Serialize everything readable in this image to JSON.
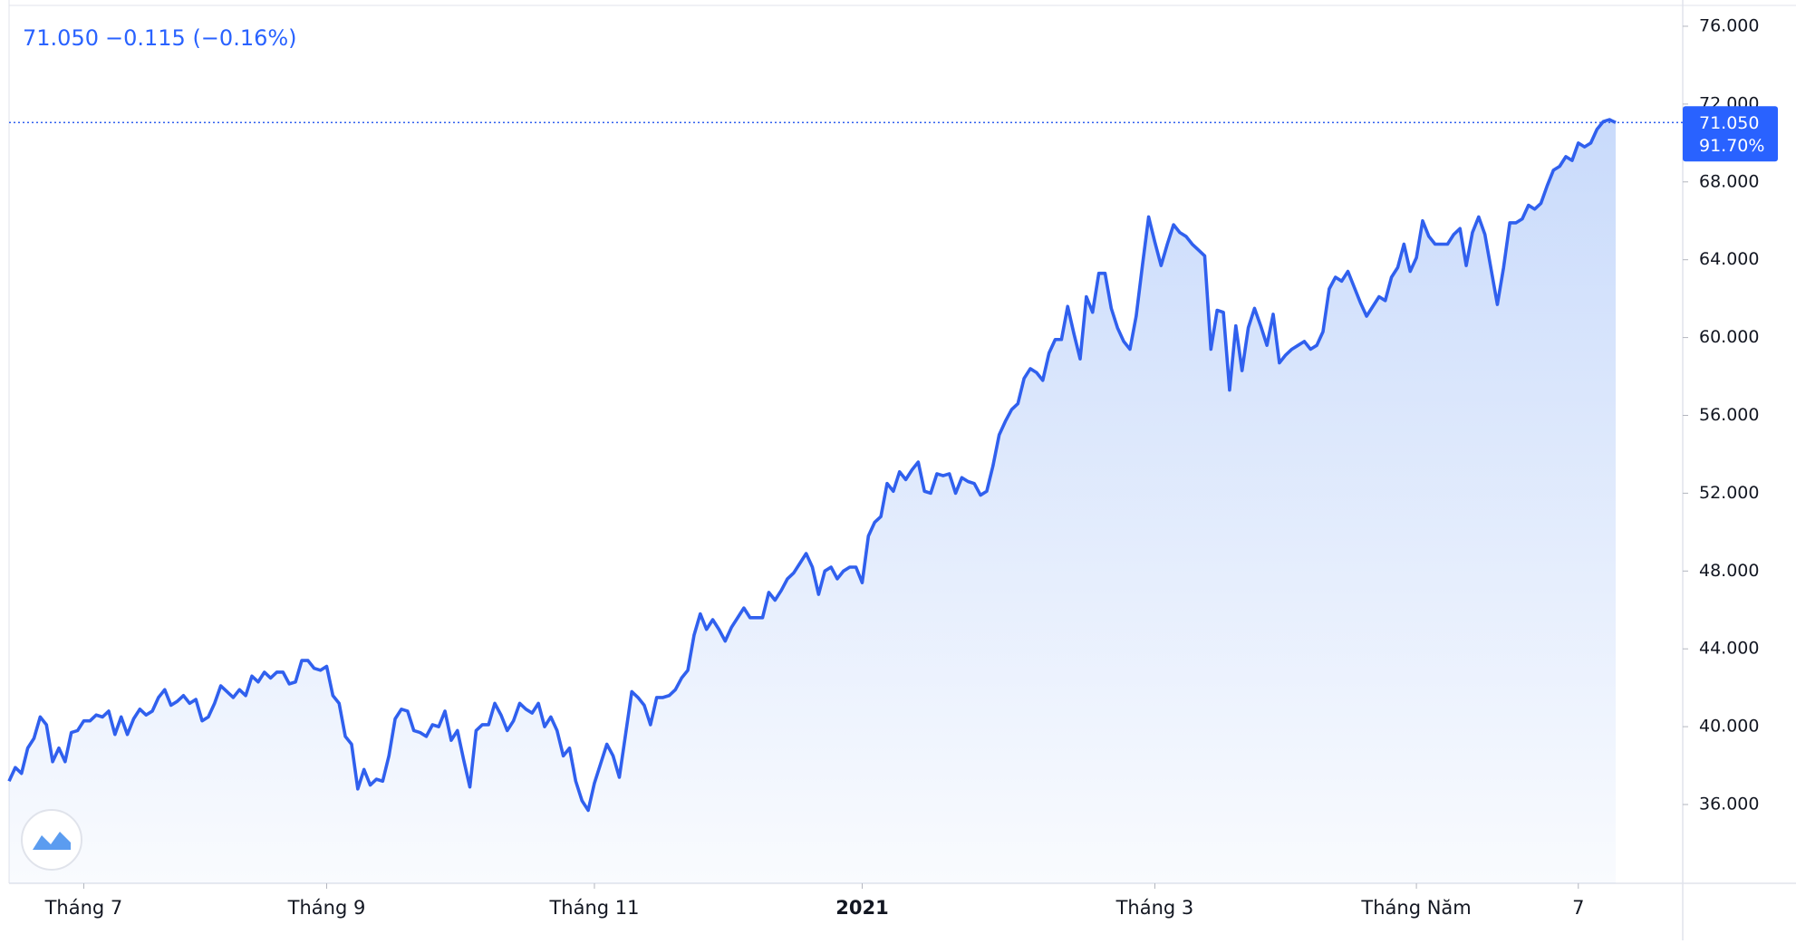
{
  "chart_data": {
    "type": "area",
    "header": {
      "price": "71.050",
      "change": "−0.115 (−0.16%)"
    },
    "badge": {
      "price": "71.050",
      "percent": "91.70%"
    },
    "color": "#3060ee",
    "values": [
      37.2,
      37.9,
      37.6,
      38.9,
      39.4,
      40.5,
      40.1,
      38.2,
      38.9,
      38.2,
      39.7,
      39.8,
      40.3,
      40.3,
      40.6,
      40.5,
      40.8,
      39.6,
      40.5,
      39.6,
      40.4,
      40.9,
      40.6,
      40.8,
      41.5,
      41.9,
      41.1,
      41.3,
      41.6,
      41.2,
      41.4,
      40.3,
      40.5,
      41.2,
      42.1,
      41.8,
      41.5,
      41.9,
      41.6,
      42.6,
      42.3,
      42.8,
      42.5,
      42.8,
      42.8,
      42.2,
      42.3,
      43.4,
      43.4,
      43.0,
      42.9,
      43.1,
      41.6,
      41.2,
      39.5,
      39.1,
      36.8,
      37.8,
      37.0,
      37.3,
      37.2,
      38.5,
      40.4,
      40.9,
      40.8,
      39.8,
      39.7,
      39.5,
      40.1,
      40.0,
      40.8,
      39.3,
      39.8,
      38.3,
      36.9,
      39.8,
      40.1,
      40.1,
      41.2,
      40.6,
      39.8,
      40.3,
      41.2,
      40.9,
      40.7,
      41.2,
      40.0,
      40.5,
      39.8,
      38.5,
      38.9,
      37.2,
      36.2,
      35.7,
      37.1,
      38.1,
      39.1,
      38.5,
      37.4,
      39.6,
      41.8,
      41.5,
      41.1,
      40.1,
      41.5,
      41.5,
      41.6,
      41.9,
      42.5,
      42.9,
      44.7,
      45.8,
      45.0,
      45.5,
      45.0,
      44.4,
      45.1,
      45.6,
      46.1,
      45.6,
      45.6,
      45.6,
      46.9,
      46.5,
      47.0,
      47.6,
      47.9,
      48.4,
      48.9,
      48.2,
      46.8,
      48.0,
      48.2,
      47.6,
      48.0,
      48.2,
      48.2,
      47.4,
      49.8,
      50.5,
      50.8,
      52.5,
      52.1,
      53.1,
      52.7,
      53.2,
      53.6,
      52.1,
      52.0,
      53.0,
      52.9,
      53.0,
      52.0,
      52.8,
      52.6,
      52.5,
      51.9,
      52.1,
      53.4,
      55.0,
      55.7,
      56.3,
      56.6,
      57.9,
      58.4,
      58.2,
      57.8,
      59.2,
      59.9,
      59.9,
      61.6,
      60.2,
      58.9,
      62.1,
      61.3,
      63.3,
      63.3,
      61.5,
      60.5,
      59.8,
      59.4,
      61.1,
      63.7,
      66.2,
      64.9,
      63.7,
      64.8,
      65.8,
      65.4,
      65.2,
      64.8,
      64.5,
      64.2,
      59.4,
      61.4,
      61.3,
      57.3,
      60.6,
      58.3,
      60.5,
      61.5,
      60.6,
      59.6,
      61.2,
      58.7,
      59.1,
      59.4,
      59.6,
      59.8,
      59.4,
      59.6,
      60.3,
      62.5,
      63.1,
      62.9,
      63.4,
      62.6,
      61.8,
      61.1,
      61.6,
      62.1,
      61.9,
      63.1,
      63.6,
      64.8,
      63.4,
      64.1,
      66.0,
      65.2,
      64.8,
      64.8,
      64.8,
      65.3,
      65.6,
      63.7,
      65.4,
      66.2,
      65.3,
      63.5,
      61.7,
      63.6,
      65.9,
      65.9,
      66.1,
      66.8,
      66.6,
      66.9,
      67.8,
      68.6,
      68.8,
      69.3,
      69.1,
      70.0,
      69.8,
      70.0,
      70.7,
      71.1,
      71.2,
      71.05
    ],
    "ylim": [
      31.95,
      77.07
    ],
    "yticks": [
      {
        "value": 36,
        "label": "36.000"
      },
      {
        "value": 40,
        "label": "40.000"
      },
      {
        "value": 44,
        "label": "44.000"
      },
      {
        "value": 48,
        "label": "48.000"
      },
      {
        "value": 52,
        "label": "52.000"
      },
      {
        "value": 56,
        "label": "56.000"
      },
      {
        "value": 60,
        "label": "60.000"
      },
      {
        "value": 64,
        "label": "64.000"
      },
      {
        "value": 68,
        "label": "68.000"
      },
      {
        "value": 72,
        "label": "72.000"
      },
      {
        "value": 76,
        "label": "76.000"
      }
    ],
    "xticks": [
      {
        "value": 12,
        "label": "Tháng 7"
      },
      {
        "value": 51,
        "label": "Tháng 9"
      },
      {
        "value": 94,
        "label": "Tháng 11"
      },
      {
        "value": 137,
        "label": "2021"
      },
      {
        "value": 184,
        "label": "Tháng 3"
      },
      {
        "value": 226,
        "label": "Tháng Năm"
      },
      {
        "value": 252,
        "label": "7"
      }
    ]
  }
}
